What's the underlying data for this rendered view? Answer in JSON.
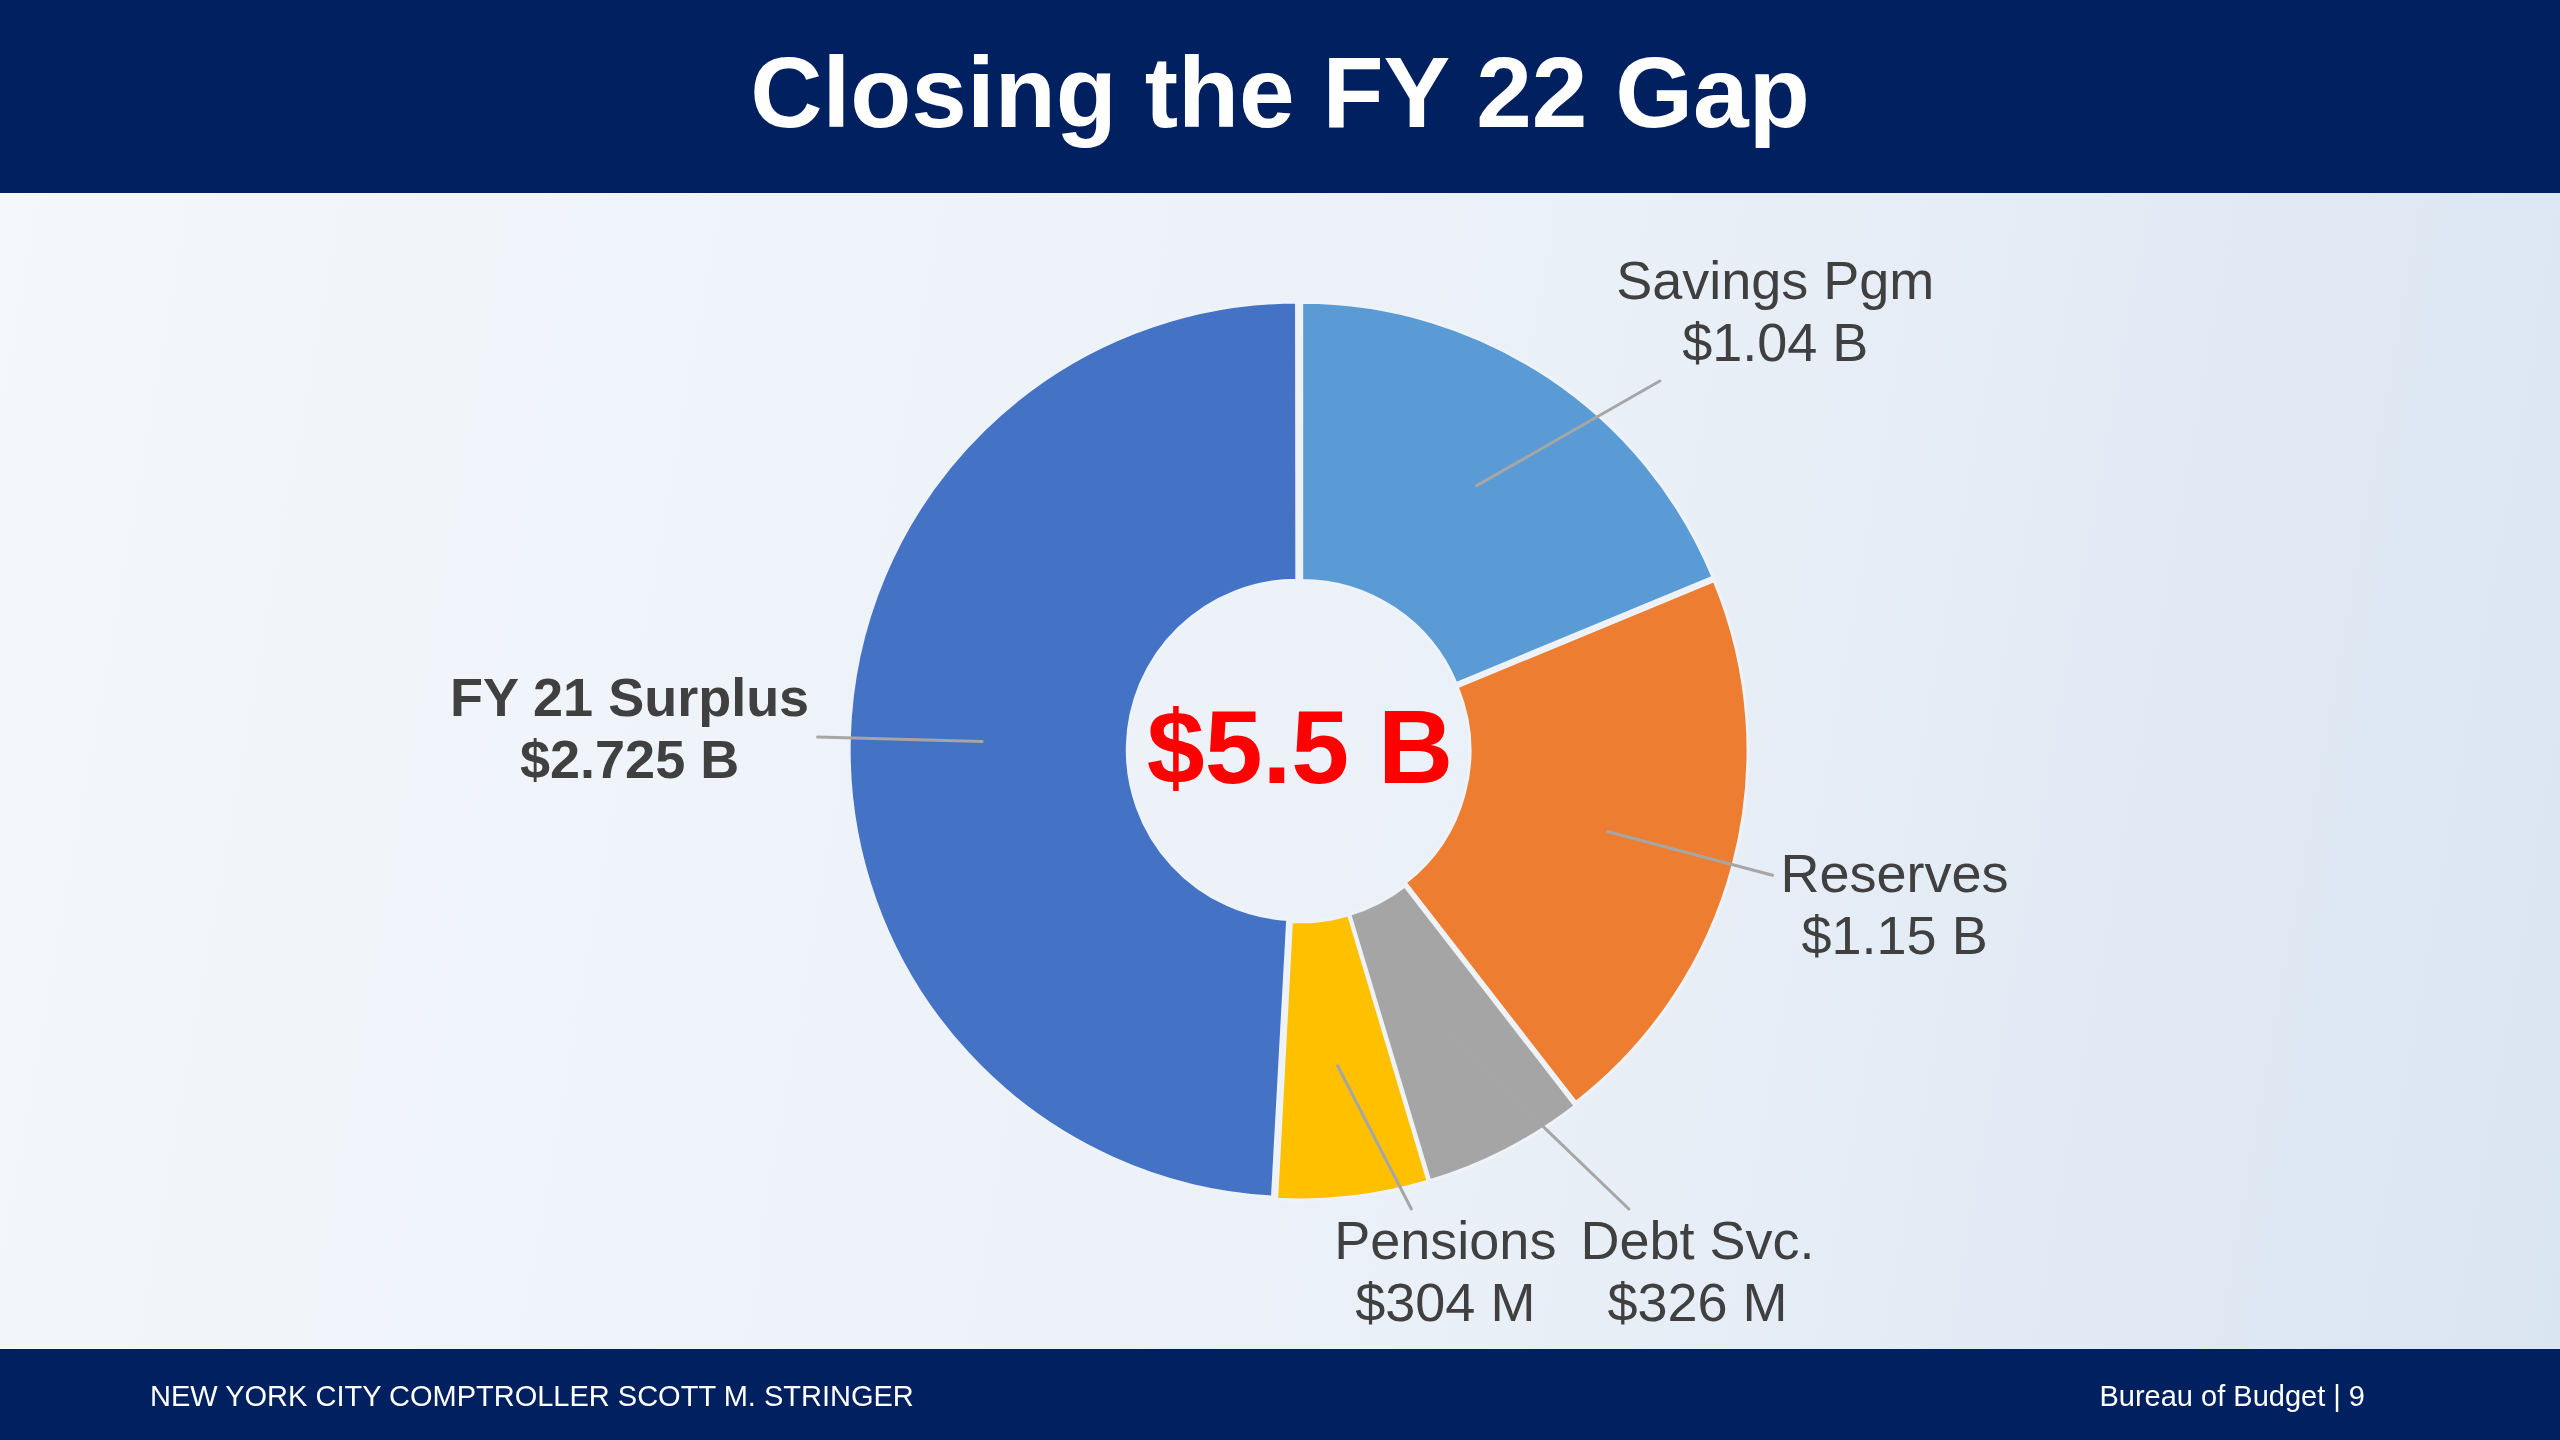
{
  "chart_data": {
    "type": "donut",
    "title": "Closing the FY 22 Gap",
    "categories": [
      "Savings Pgm",
      "Reserves",
      "Debt Svc.",
      "Pensions",
      "FY 21 Surplus"
    ],
    "values": [
      1040000000,
      1150000000,
      326000000,
      304000000,
      2725000000
    ],
    "colors": [
      "#5b9bd5",
      "#ed7d31",
      "#a5a5a5",
      "#ffc000",
      "#4472c4"
    ],
    "value_labels": [
      "$1.04 B",
      "$1.15 B",
      "$326 M",
      "$304 M",
      "$2.725 B"
    ],
    "annotations": [
      "$5.5 B",
      "NEW YORK CITY COMPTROLLER SCOTT M. STRINGER",
      "Bureau of Budget | 9"
    ]
  }
}
